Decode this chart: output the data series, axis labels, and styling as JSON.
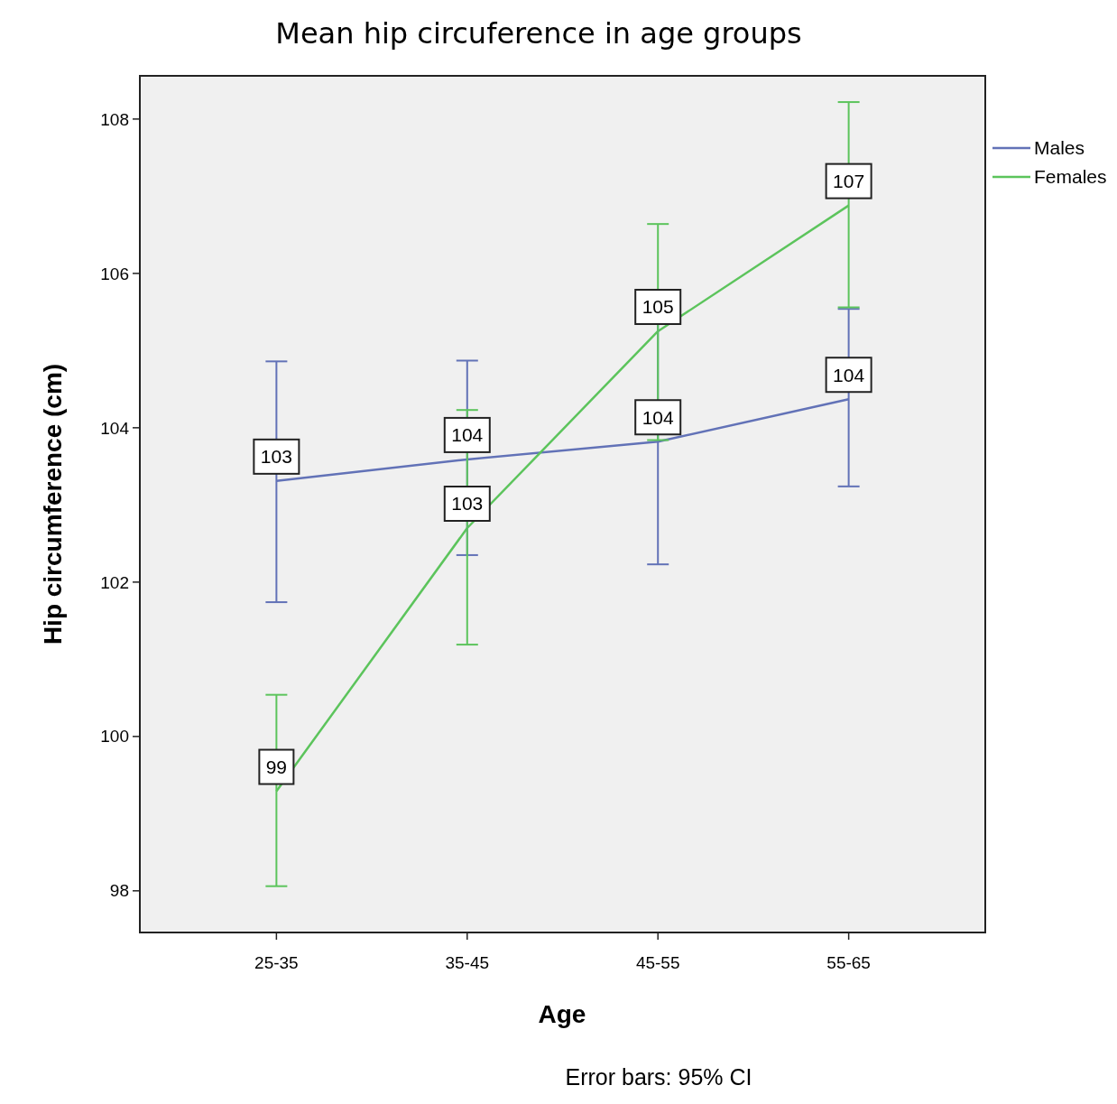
{
  "chart_data": {
    "type": "line",
    "title": "Mean hip circuference in age groups",
    "xlabel": "Age",
    "ylabel": "Hip circumference (cm)",
    "annotations": [
      "Error bars: 95% CI"
    ],
    "categories": [
      "25-35",
      "35-45",
      "45-55",
      "55-65"
    ],
    "series": [
      {
        "name": "Males",
        "color": "#6272b7",
        "values": [
          103.31,
          103.59,
          103.82,
          104.37
        ],
        "errors": [
          [
            101.74,
            104.86
          ],
          [
            102.35,
            104.87
          ],
          [
            102.23,
            105.46
          ],
          [
            103.24,
            105.54
          ]
        ],
        "value_labels": [
          "103",
          "104",
          "104",
          "104"
        ]
      },
      {
        "name": "Females",
        "color": "#5cc45c",
        "values": [
          99.29,
          102.7,
          105.25,
          106.88
        ],
        "errors": [
          [
            98.06,
            100.54
          ],
          [
            101.19,
            104.23
          ],
          [
            103.84,
            106.64
          ],
          [
            105.56,
            108.22
          ]
        ],
        "value_labels": [
          "99",
          "103",
          "105",
          "107"
        ]
      }
    ],
    "ylim": [
      97.46,
      108.56
    ],
    "yticks": [
      98,
      100,
      102,
      104,
      106,
      108
    ],
    "grid": false,
    "legend": "top right"
  }
}
